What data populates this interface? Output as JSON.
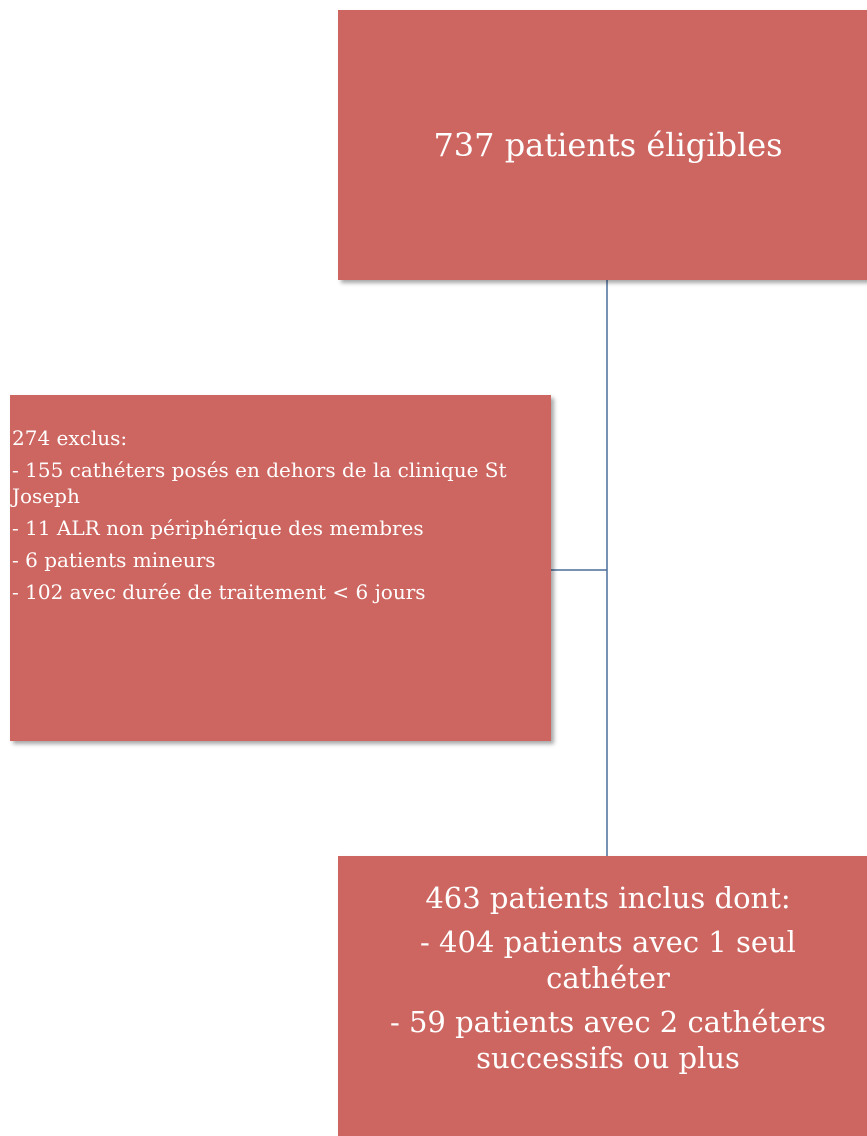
{
  "nodes": [
    {
      "label": "737 patients éligibles"
    },
    {
      "label": "274 exclus:",
      "items": [
        "- 155 cathéters posés en  dehors de la clinique St Joseph",
        "- 11 ALR non périphérique des membres",
        "- 6 patients mineurs",
        "- 102 avec durée de traitement < 6 jours"
      ]
    },
    {
      "label": "463 patients inclus dont:",
      "items": [
        "- 404 patients avec 1 seul cathéter",
        "- 59 patients avec 2 cathéters successifs ou plus"
      ]
    }
  ]
}
